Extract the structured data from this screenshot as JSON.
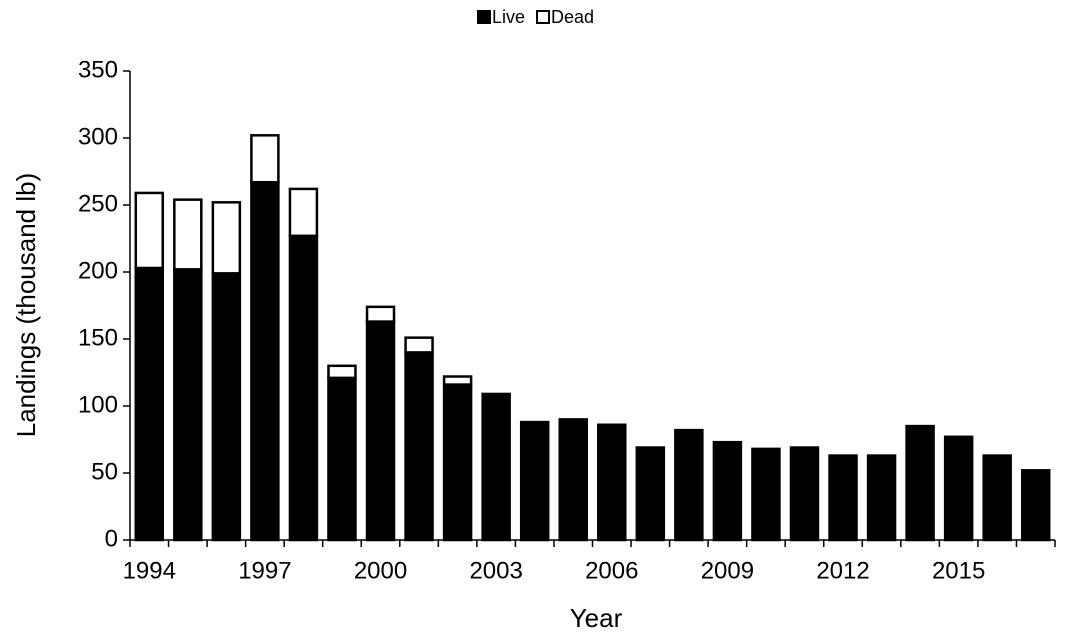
{
  "chart_data": {
    "type": "stacked_bar",
    "x_label": "Year",
    "y_label": "Landings (thousand lb)",
    "categories": [
      "1994",
      null,
      null,
      "1997",
      null,
      null,
      "2000",
      null,
      null,
      "2003",
      null,
      null,
      "2006",
      null,
      null,
      "2009",
      null,
      null,
      "2012",
      null,
      null,
      "2015",
      null,
      null
    ],
    "series": [
      {
        "name": "Live",
        "color": "#000000",
        "values": [
          203,
          202,
          199,
          267,
          227,
          121,
          163,
          140,
          116,
          109,
          88,
          90,
          86,
          69,
          82,
          73,
          68,
          69,
          63,
          63,
          85,
          77,
          63,
          52
        ]
      },
      {
        "name": "Dead",
        "color": "#ffffff",
        "values": [
          56,
          52,
          53,
          35,
          35,
          9,
          11,
          11,
          6,
          0,
          0,
          0,
          0,
          0,
          0,
          0,
          0,
          0,
          0,
          0,
          0,
          0,
          0,
          0
        ]
      }
    ],
    "ylim": [
      0,
      350
    ],
    "yticks": [
      0,
      50,
      100,
      150,
      200,
      250,
      300,
      350
    ],
    "legend": "top"
  }
}
